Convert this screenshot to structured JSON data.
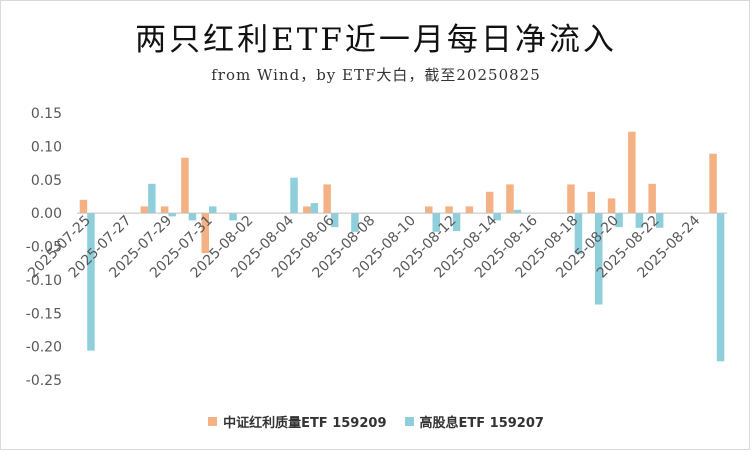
{
  "chart_data": {
    "type": "bar",
    "title": "两只红利ETF近一月每日净流入",
    "subtitle": "from Wind，by ETF大白，截至20250825",
    "categories": [
      "2025-07-25",
      "2025-07-26",
      "2025-07-27",
      "2025-07-28",
      "2025-07-29",
      "2025-07-30",
      "2025-07-31",
      "2025-08-01",
      "2025-08-02",
      "2025-08-03",
      "2025-08-04",
      "2025-08-05",
      "2025-08-06",
      "2025-08-07",
      "2025-08-08",
      "2025-08-09",
      "2025-08-10",
      "2025-08-11",
      "2025-08-12",
      "2025-08-13",
      "2025-08-14",
      "2025-08-15",
      "2025-08-16",
      "2025-08-17",
      "2025-08-18",
      "2025-08-19",
      "2025-08-20",
      "2025-08-21",
      "2025-08-22",
      "2025-08-23",
      "2025-08-24",
      "2025-08-25"
    ],
    "tick_labels": [
      "2025-07-25",
      "",
      "2025-07-27",
      "",
      "2025-07-29",
      "",
      "2025-07-31",
      "",
      "2025-08-02",
      "",
      "2025-08-04",
      "",
      "2025-08-06",
      "",
      "2025-08-08",
      "",
      "2025-08-10",
      "",
      "2025-08-12",
      "",
      "2025-08-14",
      "",
      "2025-08-16",
      "",
      "2025-08-18",
      "",
      "2025-08-20",
      "",
      "2025-08-22",
      "",
      "2025-08-24",
      ""
    ],
    "series": [
      {
        "name": "中证红利质量ETF 159209",
        "color": "#F4B183",
        "values": [
          0.02,
          0,
          0,
          0.01,
          0.01,
          0.083,
          -0.06,
          0,
          0,
          0,
          0,
          0.01,
          0.043,
          0,
          0,
          0,
          0,
          0.01,
          0.01,
          0.01,
          0.032,
          0.043,
          0,
          0,
          0.043,
          0.032,
          0.022,
          0.122,
          0.044,
          0,
          0,
          0.089
        ]
      },
      {
        "name": "高股息ETF 159207",
        "color": "#8ECFDB",
        "values": [
          -0.206,
          0,
          0,
          0.044,
          -0.005,
          -0.011,
          0.01,
          -0.011,
          0,
          0,
          0.053,
          0.015,
          -0.021,
          -0.028,
          0,
          0,
          0,
          -0.028,
          -0.027,
          0,
          -0.011,
          0.005,
          0,
          0,
          -0.061,
          -0.137,
          -0.021,
          -0.022,
          -0.022,
          0,
          0,
          -0.222
        ]
      }
    ],
    "ylim": [
      -0.25,
      0.15
    ],
    "yticks": [
      "0.15",
      "0.10",
      "0.05",
      "0.00",
      "-0.05",
      "-0.10",
      "-0.15",
      "-0.20",
      "-0.25"
    ],
    "ytick_values": [
      0.15,
      0.1,
      0.05,
      0,
      -0.05,
      -0.1,
      -0.15,
      -0.2,
      -0.25
    ],
    "grid": false,
    "legend": "bottom"
  }
}
